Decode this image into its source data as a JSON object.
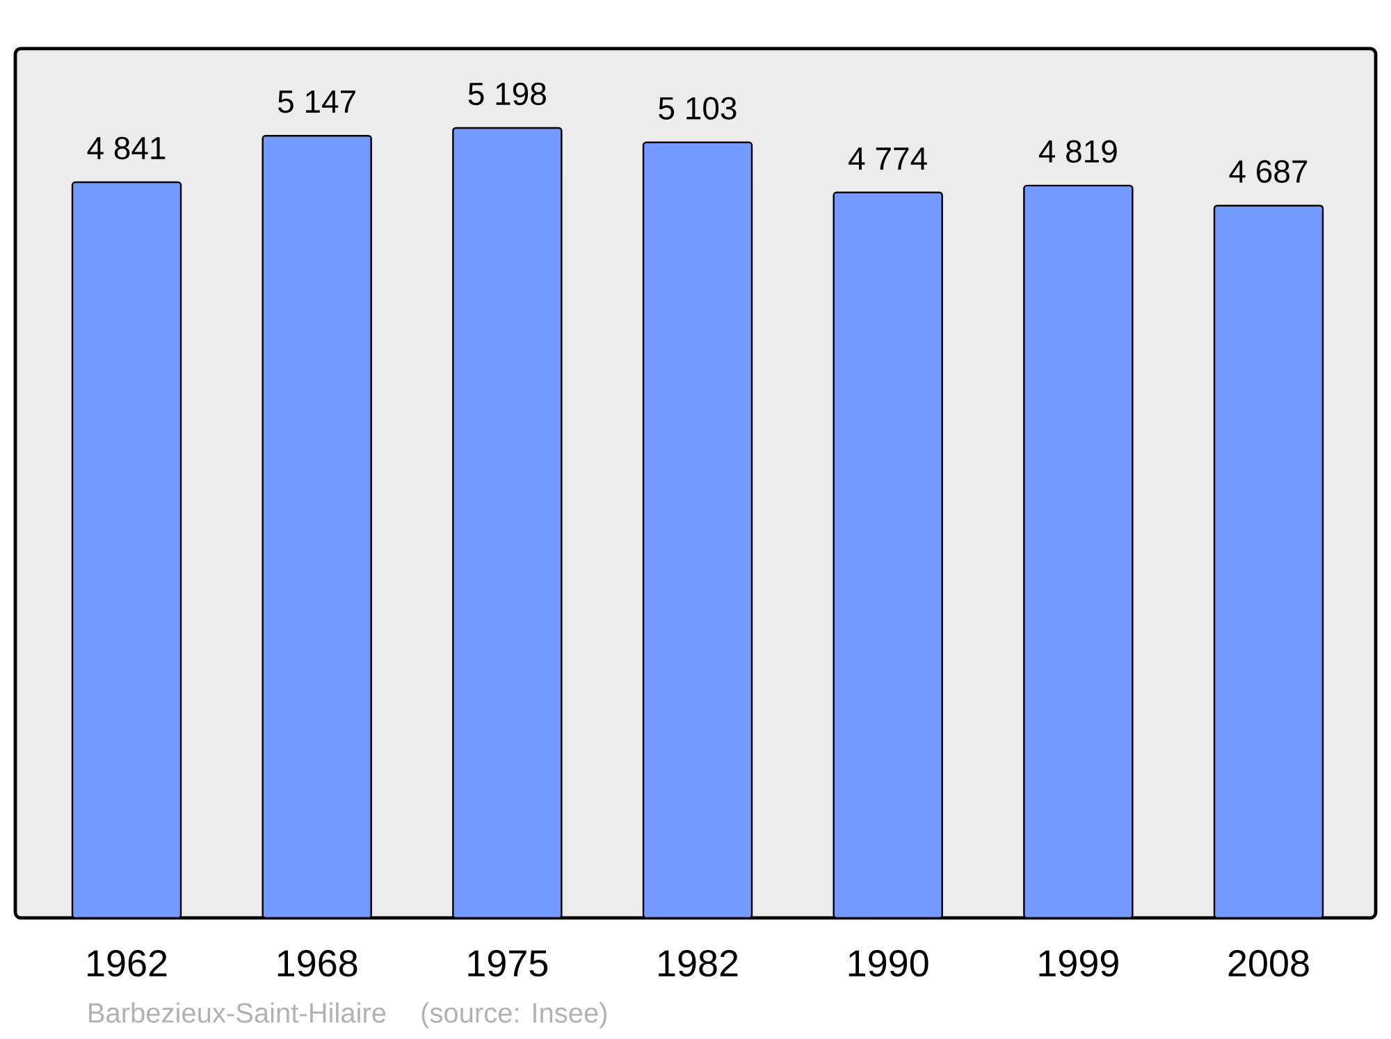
{
  "chart_data": {
    "type": "bar",
    "categories": [
      "1962",
      "1968",
      "1975",
      "1982",
      "1990",
      "1999",
      "2008"
    ],
    "values": [
      4841,
      5147,
      5198,
      5103,
      4774,
      4819,
      4687
    ],
    "value_labels": [
      "4 841",
      "5 147",
      "5 198",
      "5 103",
      "4 774",
      "4 819",
      "4 687"
    ],
    "color": "#7499ff",
    "ylim": [
      0,
      5720
    ],
    "annotations": [
      "Barbezieux-Saint-Hilaire",
      "(source: Insee)"
    ]
  }
}
